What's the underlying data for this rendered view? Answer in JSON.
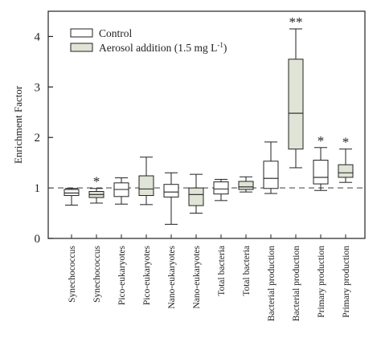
{
  "chart_data": {
    "type": "box",
    "ylabel": "Enrichment Factor",
    "xlabel": "",
    "ylim": [
      0,
      4.5
    ],
    "yticks": [
      0,
      1,
      2,
      3,
      4
    ],
    "reference_line": 1,
    "grid": false,
    "legend": {
      "placement": "top-left",
      "entries": [
        {
          "series_key": "control",
          "label": "Control",
          "color": "#ffffff"
        },
        {
          "series_key": "aerosol",
          "label": "Aerosol addition (1.5 mg L",
          "superscript": "-1",
          "suffix": ")",
          "color": "#dfe4d6"
        }
      ]
    },
    "series_colors": {
      "control": "#ffffff",
      "aerosol": "#dfe4d6"
    },
    "categories": [
      "Synechococcus",
      "Synechococcus",
      "Pico-eukaryotes",
      "Pico-eukaryotes",
      "Nano-eukaryotes",
      "Nano-eukaryotes",
      "Total bacteria",
      "Total bacteria",
      "Bacterial production",
      "Bacterial production",
      "Primary production",
      "Primary production"
    ],
    "boxes": [
      {
        "series": "control",
        "whisker_low": 0.66,
        "q1": 0.85,
        "median": 0.9,
        "q3": 0.97,
        "whisker_high": 0.99,
        "mark": ""
      },
      {
        "series": "aerosol",
        "whisker_low": 0.7,
        "q1": 0.81,
        "median": 0.87,
        "q3": 0.93,
        "whisker_high": 0.99,
        "mark": "*"
      },
      {
        "series": "control",
        "whisker_low": 0.68,
        "q1": 0.83,
        "median": 0.97,
        "q3": 1.1,
        "whisker_high": 1.2,
        "mark": ""
      },
      {
        "series": "aerosol",
        "whisker_low": 0.67,
        "q1": 0.85,
        "median": 0.98,
        "q3": 1.24,
        "whisker_high": 1.61,
        "mark": ""
      },
      {
        "series": "control",
        "whisker_low": 0.28,
        "q1": 0.82,
        "median": 0.92,
        "q3": 1.07,
        "whisker_high": 1.3,
        "mark": ""
      },
      {
        "series": "aerosol",
        "whisker_low": 0.5,
        "q1": 0.65,
        "median": 0.87,
        "q3": 1.0,
        "whisker_high": 1.27,
        "mark": ""
      },
      {
        "series": "control",
        "whisker_low": 0.75,
        "q1": 0.88,
        "median": 0.98,
        "q3": 1.12,
        "whisker_high": 1.17,
        "mark": ""
      },
      {
        "series": "aerosol",
        "whisker_low": 0.92,
        "q1": 0.97,
        "median": 1.02,
        "q3": 1.13,
        "whisker_high": 1.22,
        "mark": ""
      },
      {
        "series": "control",
        "whisker_low": 0.89,
        "q1": 0.99,
        "median": 1.19,
        "q3": 1.53,
        "whisker_high": 1.91,
        "mark": ""
      },
      {
        "series": "aerosol",
        "whisker_low": 1.4,
        "q1": 1.77,
        "median": 2.48,
        "q3": 3.55,
        "whisker_high": 4.15,
        "mark": "**"
      },
      {
        "series": "control",
        "whisker_low": 0.95,
        "q1": 1.08,
        "median": 1.21,
        "q3": 1.55,
        "whisker_high": 1.8,
        "mark": "*"
      },
      {
        "series": "aerosol",
        "whisker_low": 1.11,
        "q1": 1.21,
        "median": 1.3,
        "q3": 1.46,
        "whisker_high": 1.77,
        "mark": "*"
      }
    ]
  }
}
